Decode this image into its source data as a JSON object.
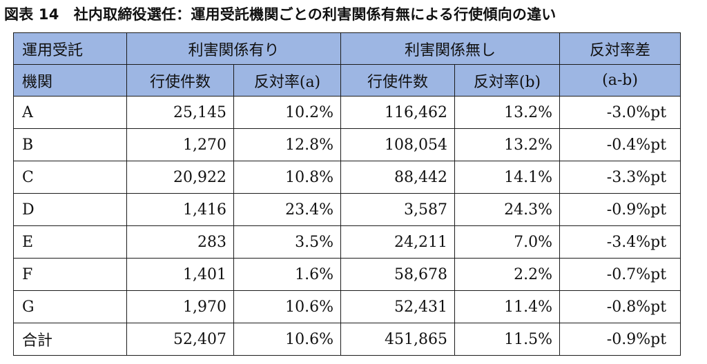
{
  "title": "図表 14　社内取締役選任：運用受託機関ごとの利害関係有無による行使傾向の違い",
  "header": {
    "agency_line1": "運用受託",
    "agency_line2": "機関",
    "with_interest": "利害関係有り",
    "without_interest": "利害関係無し",
    "diff_line1": "反対率差",
    "diff_line2": "(a-b)",
    "votes_a": "行使件数",
    "rate_a": "反対率(a)",
    "votes_b": "行使件数",
    "rate_b": "反対率(b)"
  },
  "rows": [
    {
      "name": "A",
      "votes_a": "25,145",
      "rate_a": "10.2%",
      "votes_b": "116,462",
      "rate_b": "13.2%",
      "diff": "-3.0%pt"
    },
    {
      "name": "B",
      "votes_a": "1,270",
      "rate_a": "12.8%",
      "votes_b": "108,054",
      "rate_b": "13.2%",
      "diff": "-0.4%pt"
    },
    {
      "name": "C",
      "votes_a": "20,922",
      "rate_a": "10.8%",
      "votes_b": "88,442",
      "rate_b": "14.1%",
      "diff": "-3.3%pt"
    },
    {
      "name": "D",
      "votes_a": "1,416",
      "rate_a": "23.4%",
      "votes_b": "3,587",
      "rate_b": "24.3%",
      "diff": "-0.9%pt"
    },
    {
      "name": "E",
      "votes_a": "283",
      "rate_a": "3.5%",
      "votes_b": "24,211",
      "rate_b": "7.0%",
      "diff": "-3.4%pt"
    },
    {
      "name": "F",
      "votes_a": "1,401",
      "rate_a": "1.6%",
      "votes_b": "58,678",
      "rate_b": "2.2%",
      "diff": "-0.7%pt"
    },
    {
      "name": "G",
      "votes_a": "1,970",
      "rate_a": "10.6%",
      "votes_b": "52,431",
      "rate_b": "11.4%",
      "diff": "-0.8%pt"
    },
    {
      "name": "合計",
      "votes_a": "52,407",
      "rate_a": "10.6%",
      "votes_b": "451,865",
      "rate_b": "11.5%",
      "diff": "-0.9%pt"
    }
  ],
  "colors": {
    "header_fill": "#9db6e3",
    "border": "#1a1a1a",
    "text": "#111111"
  }
}
